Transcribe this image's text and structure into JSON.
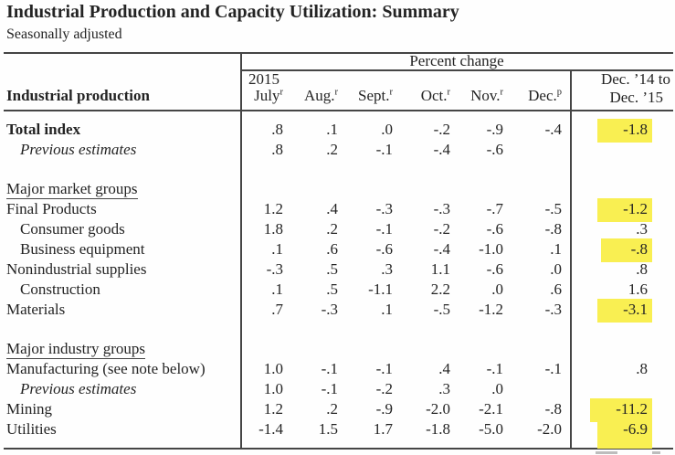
{
  "title": "Industrial Production and Capacity Utilization: Summary",
  "subtitle": "Seasonally adjusted",
  "highlight_color": "#f9ef52",
  "table": {
    "stub_header": "Industrial production",
    "group_header": "Percent change",
    "year_label": "2015",
    "annual_header_line1": "Dec. ’14 to",
    "annual_header_line2": "Dec. ’15",
    "month_columns": [
      {
        "label": "July",
        "sup": "r"
      },
      {
        "label": "Aug.",
        "sup": "r"
      },
      {
        "label": "Sept.",
        "sup": "r"
      },
      {
        "label": "Oct.",
        "sup": "r"
      },
      {
        "label": "Nov.",
        "sup": "r"
      },
      {
        "label": "Dec.",
        "sup": "p"
      }
    ],
    "rows": [
      {
        "label": "Total index",
        "bold": true,
        "values": [
          ".8",
          ".1",
          ".0",
          "-.2",
          "-.9",
          "-.4"
        ],
        "annual": "-1.8",
        "highlight": true
      },
      {
        "label": "Previous estimates",
        "italic": true,
        "indent": 1,
        "values": [
          ".8",
          ".2",
          "-.1",
          "-.4",
          "-.6",
          ""
        ],
        "annual": "",
        "highlight": false
      },
      {
        "type": "spacer"
      },
      {
        "label": "Major market groups",
        "section": true
      },
      {
        "label": "Final Products",
        "values": [
          "1.2",
          ".4",
          "-.3",
          "-.3",
          "-.7",
          "-.5"
        ],
        "annual": "-1.2",
        "highlight": true
      },
      {
        "label": "Consumer goods",
        "indent": 1,
        "values": [
          "1.8",
          ".2",
          "-.1",
          "-.2",
          "-.6",
          "-.8"
        ],
        "annual": ".3",
        "highlight": false
      },
      {
        "label": "Business equipment",
        "indent": 1,
        "values": [
          ".1",
          ".6",
          "-.6",
          "-.4",
          "-1.0",
          ".1"
        ],
        "annual": "-.8",
        "highlight": true
      },
      {
        "label": "Nonindustrial supplies",
        "values": [
          "-.3",
          ".5",
          ".3",
          "1.1",
          "-.6",
          ".0"
        ],
        "annual": ".8",
        "highlight": false
      },
      {
        "label": "Construction",
        "indent": 1,
        "values": [
          ".1",
          ".5",
          "-1.1",
          "2.2",
          ".0",
          ".6"
        ],
        "annual": "1.6",
        "highlight": false
      },
      {
        "label": "Materials",
        "values": [
          ".7",
          "-.3",
          ".1",
          "-.5",
          "-1.2",
          "-.3"
        ],
        "annual": "-3.1",
        "highlight": true
      },
      {
        "type": "spacer"
      },
      {
        "label": "Major industry groups",
        "section": true
      },
      {
        "label": "Manufacturing (see note below)",
        "values": [
          "1.0",
          "-.1",
          "-.1",
          ".4",
          "-.1",
          "-.1"
        ],
        "annual": ".8",
        "highlight": false
      },
      {
        "label": "Previous estimates",
        "italic": true,
        "indent": 1,
        "values": [
          "1.0",
          "-.1",
          "-.2",
          ".3",
          ".0",
          ""
        ],
        "annual": "",
        "highlight": false
      },
      {
        "label": "Mining",
        "values": [
          "1.2",
          ".2",
          "-.9",
          "-2.0",
          "-2.1",
          "-.8"
        ],
        "annual": "-11.2",
        "highlight": true
      },
      {
        "label": "Utilities",
        "values": [
          "-1.4",
          "1.5",
          "1.7",
          "-1.8",
          "-5.0",
          "-2.0"
        ],
        "annual": "-6.9",
        "highlight": true,
        "highlight_extend": true
      }
    ]
  }
}
